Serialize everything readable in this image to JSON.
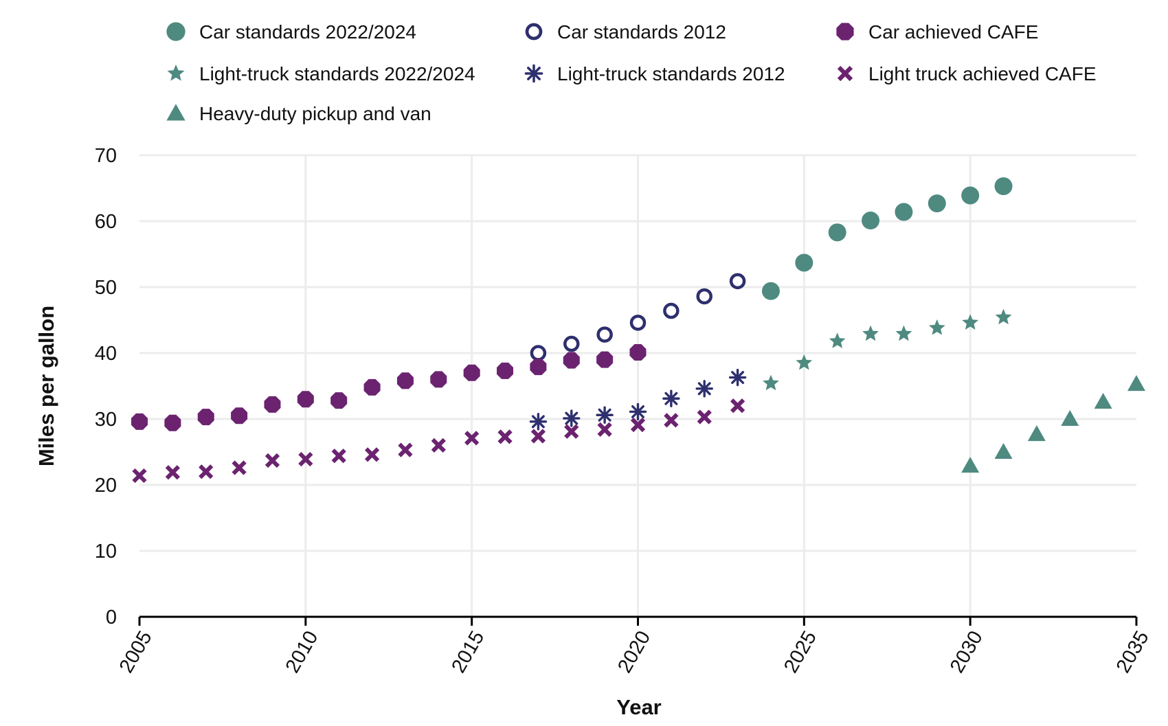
{
  "chart_data": {
    "type": "scatter",
    "title": "",
    "xlabel": "Year",
    "ylabel": "Miles per gallon",
    "xlim": [
      2005,
      2035
    ],
    "ylim": [
      0,
      70
    ],
    "x_ticks": [
      2005,
      2010,
      2015,
      2020,
      2025,
      2030,
      2035
    ],
    "y_ticks": [
      0,
      10,
      20,
      30,
      40,
      50,
      60,
      70
    ],
    "grid": true,
    "legend_position": "top",
    "series": [
      {
        "name": "Car standards 2022/2024",
        "marker": "circle-filled",
        "color": "#4e8a80",
        "points": [
          [
            2024,
            49.4
          ],
          [
            2025,
            53.7
          ],
          [
            2026,
            58.3
          ],
          [
            2027,
            60.1
          ],
          [
            2028,
            61.4
          ],
          [
            2029,
            62.7
          ],
          [
            2030,
            63.9
          ],
          [
            2031,
            65.3
          ]
        ]
      },
      {
        "name": "Car standards 2012",
        "marker": "circle-open",
        "color": "#2e2f6e",
        "points": [
          [
            2017,
            40.0
          ],
          [
            2018,
            41.4
          ],
          [
            2019,
            42.8
          ],
          [
            2020,
            44.6
          ],
          [
            2021,
            46.4
          ],
          [
            2022,
            48.6
          ],
          [
            2023,
            50.9
          ]
        ]
      },
      {
        "name": "Car achieved CAFE",
        "marker": "octagon-filled",
        "color": "#6b2370",
        "points": [
          [
            2005,
            29.6
          ],
          [
            2006,
            29.4
          ],
          [
            2007,
            30.3
          ],
          [
            2008,
            30.5
          ],
          [
            2009,
            32.2
          ],
          [
            2010,
            33.0
          ],
          [
            2011,
            32.8
          ],
          [
            2012,
            34.8
          ],
          [
            2013,
            35.8
          ],
          [
            2014,
            36.0
          ],
          [
            2015,
            37.0
          ],
          [
            2016,
            37.3
          ],
          [
            2017,
            37.9
          ],
          [
            2018,
            38.9
          ],
          [
            2019,
            39.0
          ],
          [
            2020,
            40.1
          ]
        ]
      },
      {
        "name": "Light-truck standards 2022/2024",
        "marker": "star",
        "color": "#4e8a80",
        "points": [
          [
            2024,
            35.4
          ],
          [
            2025,
            38.5
          ],
          [
            2026,
            41.8
          ],
          [
            2027,
            42.9
          ],
          [
            2028,
            42.9
          ],
          [
            2029,
            43.8
          ],
          [
            2030,
            44.6
          ],
          [
            2031,
            45.4
          ]
        ]
      },
      {
        "name": "Light-truck standards 2012",
        "marker": "asterisk",
        "color": "#2e2f6e",
        "points": [
          [
            2017,
            29.6
          ],
          [
            2018,
            30.1
          ],
          [
            2019,
            30.6
          ],
          [
            2020,
            31.1
          ],
          [
            2021,
            33.1
          ],
          [
            2022,
            34.6
          ],
          [
            2023,
            36.3
          ]
        ]
      },
      {
        "name": "Light truck achieved CAFE",
        "marker": "x",
        "color": "#6b2370",
        "points": [
          [
            2005,
            21.4
          ],
          [
            2006,
            21.9
          ],
          [
            2007,
            22.0
          ],
          [
            2008,
            22.6
          ],
          [
            2009,
            23.7
          ],
          [
            2010,
            23.9
          ],
          [
            2011,
            24.4
          ],
          [
            2012,
            24.6
          ],
          [
            2013,
            25.3
          ],
          [
            2014,
            26.0
          ],
          [
            2015,
            27.1
          ],
          [
            2016,
            27.3
          ],
          [
            2017,
            27.4
          ],
          [
            2018,
            28.1
          ],
          [
            2019,
            28.4
          ],
          [
            2020,
            29.1
          ],
          [
            2021,
            29.8
          ],
          [
            2022,
            30.3
          ],
          [
            2023,
            32.0
          ]
        ]
      },
      {
        "name": "Heavy-duty pickup and van",
        "marker": "triangle",
        "color": "#4e8a80",
        "points": [
          [
            2030,
            22.9
          ],
          [
            2031,
            25.0
          ],
          [
            2032,
            27.7
          ],
          [
            2033,
            30.0
          ],
          [
            2034,
            32.6
          ],
          [
            2035,
            35.3
          ]
        ]
      }
    ]
  }
}
